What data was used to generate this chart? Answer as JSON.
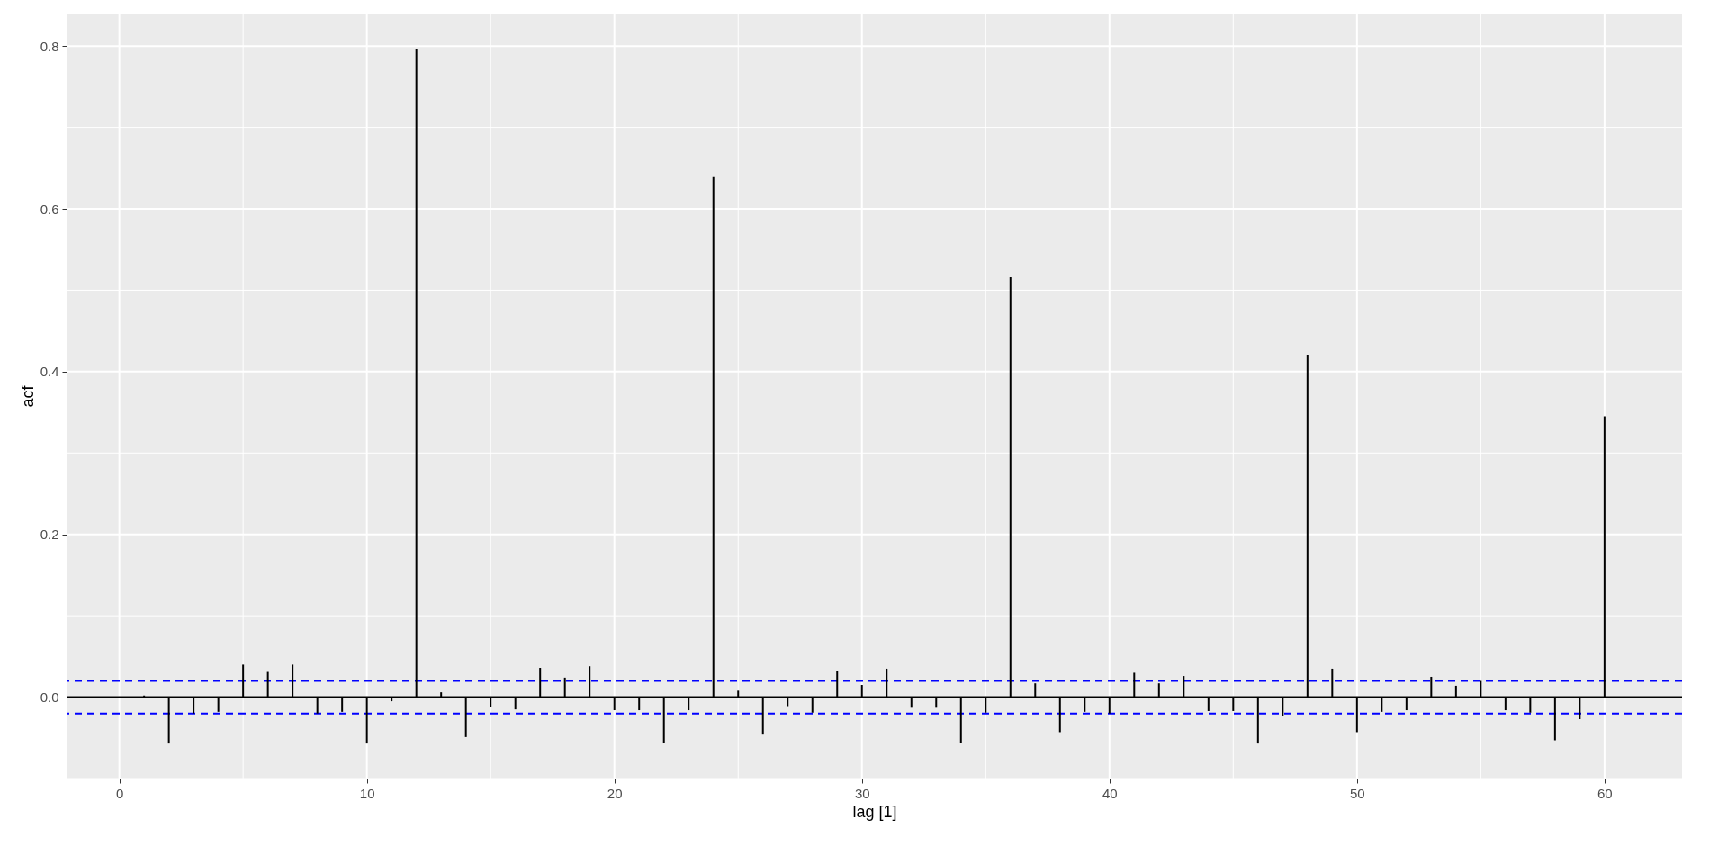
{
  "chart_data": {
    "type": "bar",
    "xlabel": "lag [1]",
    "ylabel": "acf",
    "x": [
      1,
      2,
      3,
      4,
      5,
      6,
      7,
      8,
      9,
      10,
      11,
      12,
      13,
      14,
      15,
      16,
      17,
      18,
      19,
      20,
      21,
      22,
      23,
      24,
      25,
      26,
      27,
      28,
      29,
      30,
      31,
      32,
      33,
      34,
      35,
      36,
      37,
      38,
      39,
      40,
      41,
      42,
      43,
      44,
      45,
      46,
      47,
      48,
      49,
      50,
      51,
      52,
      53,
      54,
      55,
      56,
      57,
      58,
      59,
      60
    ],
    "values": [
      0.002,
      -0.057,
      -0.02,
      -0.018,
      0.04,
      0.031,
      0.04,
      -0.02,
      -0.018,
      -0.057,
      -0.005,
      0.797,
      0.006,
      -0.049,
      -0.012,
      -0.015,
      0.036,
      0.024,
      0.038,
      -0.016,
      -0.016,
      -0.056,
      -0.016,
      0.639,
      0.008,
      -0.046,
      -0.011,
      -0.019,
      0.032,
      0.015,
      0.035,
      -0.013,
      -0.013,
      -0.056,
      -0.019,
      0.516,
      0.017,
      -0.043,
      -0.018,
      -0.02,
      0.03,
      0.017,
      0.026,
      -0.017,
      -0.017,
      -0.057,
      -0.023,
      0.421,
      0.035,
      -0.043,
      -0.018,
      -0.016,
      0.025,
      0.014,
      0.02,
      -0.016,
      -0.019,
      -0.053,
      -0.027,
      0.345
    ],
    "color": "#000000",
    "xlim": [
      -1.95,
      62.95
    ],
    "ylim": [
      -0.1,
      0.84
    ],
    "xticks": [
      0,
      {
        "value": 5,
        "label": null
      },
      10,
      {
        "value": 15,
        "label": null
      },
      20,
      {
        "value": 25,
        "label": null
      },
      30,
      {
        "value": 35,
        "label": null
      },
      40,
      {
        "value": 45,
        "label": null
      },
      50,
      {
        "value": 55,
        "label": null
      },
      60
    ],
    "yticks": [
      {
        "value": -0.1,
        "label": null
      },
      {
        "value": 0,
        "label": "0.0"
      },
      {
        "value": 0.1,
        "label": null
      },
      0.2,
      {
        "value": 0.3,
        "label": null
      },
      0.4,
      {
        "value": 0.5,
        "label": null
      },
      0.6,
      {
        "value": 0.7,
        "label": null
      },
      0.8
    ],
    "grid": true,
    "ref_lines": [
      {
        "axis": "y",
        "value": 0,
        "color": "#000000",
        "line_style": "solid"
      },
      {
        "axis": "y",
        "value": 0.02,
        "color": "#0000ff",
        "line_style": "dashed"
      },
      {
        "axis": "y",
        "value": -0.02,
        "color": "#0000ff",
        "line_style": "dashed"
      }
    ]
  }
}
